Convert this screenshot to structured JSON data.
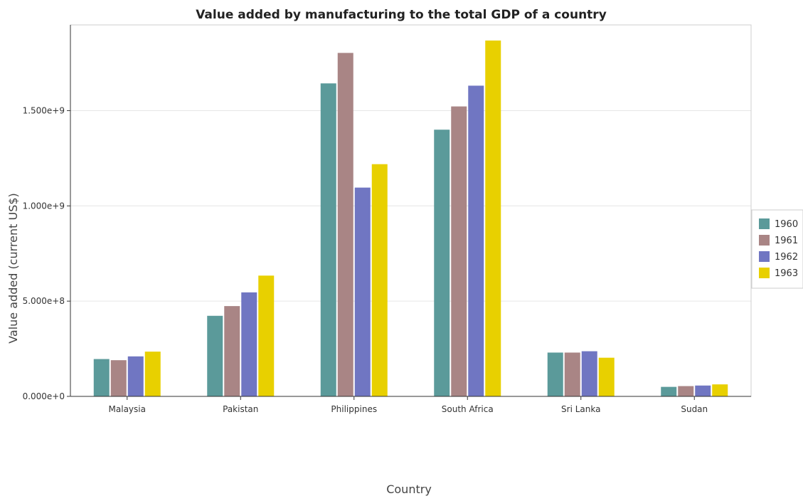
{
  "chart_data": {
    "type": "bar",
    "title": "Value added by manufacturing to the total GDP of a country",
    "xlabel": "Country",
    "ylabel": "Value added (current US$)",
    "categories": [
      "Malaysia",
      "Pakistan",
      "Philippines",
      "South Africa",
      "Sri Lanka",
      "Sudan"
    ],
    "series": [
      {
        "name": "1960",
        "color": "#5b9a9a",
        "values": [
          196000000,
          423000000,
          1643000000,
          1400000000,
          230000000,
          50000000
        ]
      },
      {
        "name": "1961",
        "color": "#a98585",
        "values": [
          190000000,
          474000000,
          1803000000,
          1522000000,
          230000000,
          54000000
        ]
      },
      {
        "name": "1962",
        "color": "#7076c2",
        "values": [
          210000000,
          546000000,
          1096000000,
          1631000000,
          237000000,
          57000000
        ]
      },
      {
        "name": "1963",
        "color": "#e8d000",
        "values": [
          235000000,
          634000000,
          1219000000,
          1868000000,
          203000000,
          63000000
        ]
      }
    ],
    "ylim": [
      0,
      1950000000
    ],
    "yticks": [
      0,
      500000000,
      1000000000,
      1500000000
    ],
    "ytick_labels": [
      "0.000e+0",
      "5.000e+8",
      "1.000e+9",
      "1.500e+9"
    ],
    "grid": true,
    "legend_position": "right"
  }
}
